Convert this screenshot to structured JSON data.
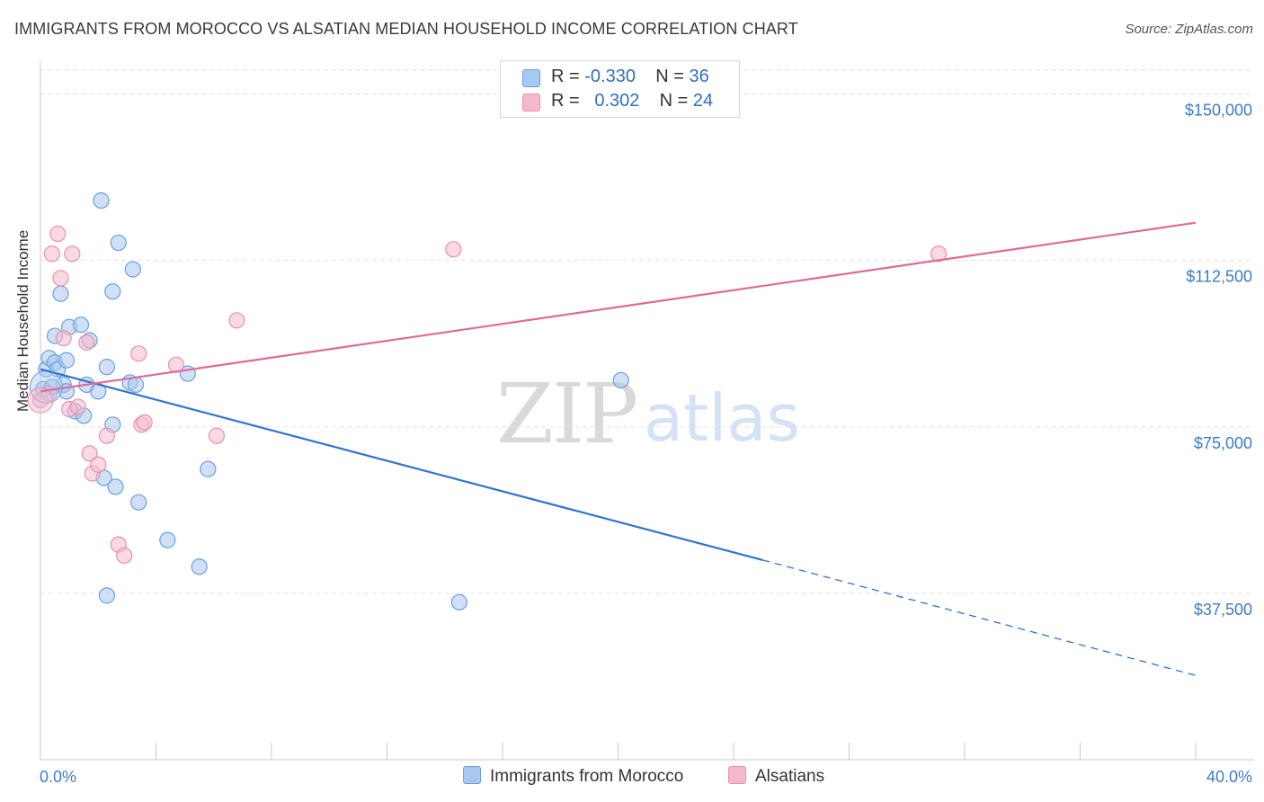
{
  "header": {
    "title": "IMMIGRANTS FROM MOROCCO VS ALSATIAN MEDIAN HOUSEHOLD INCOME CORRELATION CHART",
    "source": "Source: ZipAtlas.com"
  },
  "watermark": {
    "zip": "ZIP",
    "atlas": "atlas"
  },
  "legend": {
    "rows": [
      {
        "r_label": "R = ",
        "r_value": "-0.330",
        "n_label": "N = ",
        "n_value": "36",
        "color": "#a9c8f0"
      },
      {
        "r_label": "R = ",
        "r_value": "0.302",
        "n_label": "N = ",
        "n_value": "24",
        "color": "#f6b9cc"
      }
    ]
  },
  "chart_data": {
    "type": "scatter",
    "ylabel": "Median Household Income",
    "x_tick_labels": [
      "0.0%",
      "40.0%"
    ],
    "y_tick_labels": [
      "$37,500",
      "$75,000",
      "$112,500",
      "$150,000"
    ],
    "xlim": [
      0,
      40
    ],
    "ylim": [
      0,
      157000
    ],
    "y_ticks": [
      37500,
      75000,
      112500,
      150000
    ],
    "grid": true,
    "legend_position": "bottom",
    "series": [
      {
        "name": "Immigrants from Morocco",
        "color": "#a9c8f0",
        "stroke": "#6a9fdf",
        "line_color": "#2f74d0",
        "points": [
          [
            0.1,
            83500
          ],
          [
            0.2,
            88000
          ],
          [
            0.3,
            90500
          ],
          [
            0.5,
            89500
          ],
          [
            0.5,
            95500
          ],
          [
            0.6,
            88000
          ],
          [
            0.7,
            105000
          ],
          [
            0.8,
            84500
          ],
          [
            0.9,
            83000
          ],
          [
            1.0,
            97500
          ],
          [
            1.2,
            78500
          ],
          [
            1.4,
            98000
          ],
          [
            1.5,
            77500
          ],
          [
            1.6,
            84500
          ],
          [
            1.7,
            94500
          ],
          [
            2.0,
            83000
          ],
          [
            2.1,
            126000
          ],
          [
            2.2,
            63500
          ],
          [
            2.3,
            88500
          ],
          [
            2.3,
            37000
          ],
          [
            2.5,
            105500
          ],
          [
            2.5,
            75500
          ],
          [
            2.6,
            61500
          ],
          [
            2.7,
            116500
          ],
          [
            3.1,
            85000
          ],
          [
            3.2,
            110500
          ],
          [
            3.3,
            84500
          ],
          [
            3.4,
            58000
          ],
          [
            4.4,
            49500
          ],
          [
            5.1,
            87000
          ],
          [
            5.5,
            43500
          ],
          [
            5.8,
            65500
          ],
          [
            14.5,
            35500
          ],
          [
            20.1,
            85500
          ],
          [
            0.4,
            84000
          ],
          [
            0.9,
            90000
          ]
        ],
        "trend": {
          "x0": 0,
          "y0": 88000,
          "x1": 25,
          "y1": 45000,
          "x_dash_end": 40,
          "y_dash_end": 19000
        }
      },
      {
        "name": "Alsatians",
        "color": "#f6b9cc",
        "stroke": "#e891ad",
        "line_color": "#e06a95",
        "points": [
          [
            0.0,
            81000
          ],
          [
            0.3,
            82500
          ],
          [
            0.4,
            114000
          ],
          [
            0.6,
            118500
          ],
          [
            0.7,
            108500
          ],
          [
            0.8,
            95000
          ],
          [
            1.0,
            79000
          ],
          [
            1.1,
            114000
          ],
          [
            1.3,
            79500
          ],
          [
            1.6,
            94000
          ],
          [
            1.7,
            69000
          ],
          [
            1.8,
            64500
          ],
          [
            2.0,
            66500
          ],
          [
            2.3,
            73000
          ],
          [
            2.7,
            48500
          ],
          [
            2.9,
            46000
          ],
          [
            3.4,
            91500
          ],
          [
            3.5,
            75500
          ],
          [
            3.6,
            76000
          ],
          [
            4.7,
            89000
          ],
          [
            6.1,
            73000
          ],
          [
            6.8,
            99000
          ],
          [
            14.3,
            115000
          ],
          [
            31.1,
            114000
          ]
        ],
        "trend": {
          "x0": 0,
          "y0": 83000,
          "x1": 40,
          "y1": 121000
        }
      }
    ]
  }
}
